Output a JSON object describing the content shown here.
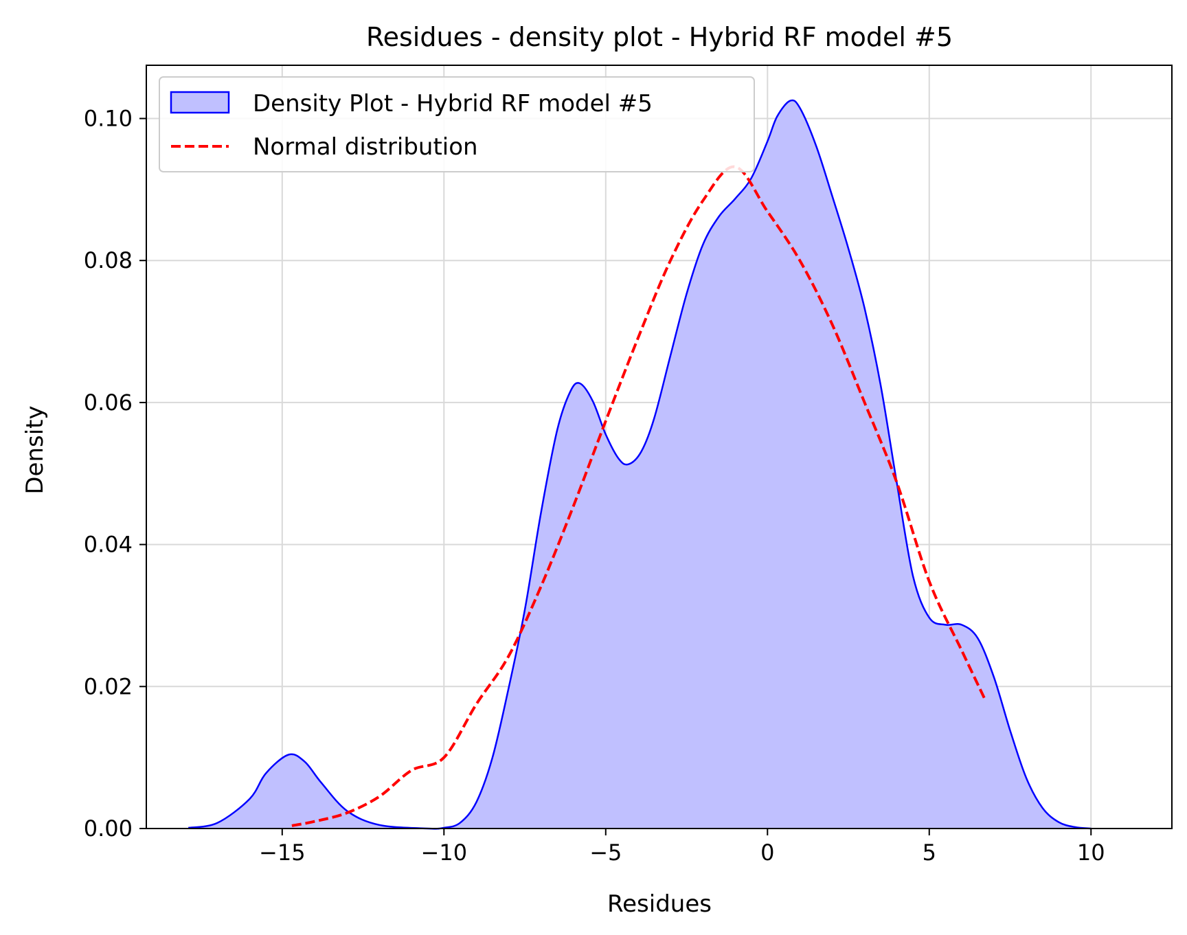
{
  "chart_data": {
    "type": "area",
    "title": "Residues - density plot - Hybrid RF model #5",
    "xlabel": "Residues",
    "ylabel": "Density",
    "xlim": [
      -19.2,
      12.5
    ],
    "ylim": [
      0,
      0.1075
    ],
    "grid": true,
    "legend_position": "upper-left",
    "x_ticks": [
      -15,
      -10,
      -5,
      0,
      5,
      10
    ],
    "x_tick_labels": [
      "−15",
      "−10",
      "−5",
      "0",
      "5",
      "10"
    ],
    "y_ticks": [
      0.0,
      0.02,
      0.04,
      0.06,
      0.08,
      0.1
    ],
    "y_tick_labels": [
      "0.00",
      "0.02",
      "0.04",
      "0.06",
      "0.08",
      "0.10"
    ],
    "series": [
      {
        "name": "Density Plot - Hybrid RF model #5",
        "kind": "filled-area",
        "color": "#0000ff",
        "fill": "#c0c0ff",
        "points": [
          [
            -17.9,
            0.0001
          ],
          [
            -17.0,
            0.0008
          ],
          [
            -16.0,
            0.0042
          ],
          [
            -15.5,
            0.0078
          ],
          [
            -14.8,
            0.0104
          ],
          [
            -14.3,
            0.0094
          ],
          [
            -13.8,
            0.0065
          ],
          [
            -13.0,
            0.0025
          ],
          [
            -12.0,
            0.0005
          ],
          [
            -10.5,
            0.0
          ],
          [
            -10.0,
            0.0001
          ],
          [
            -9.5,
            0.0008
          ],
          [
            -9.0,
            0.0037
          ],
          [
            -8.5,
            0.01
          ],
          [
            -8.0,
            0.0198
          ],
          [
            -7.5,
            0.0308
          ],
          [
            -7.0,
            0.0445
          ],
          [
            -6.5,
            0.0561
          ],
          [
            -6.1,
            0.0615
          ],
          [
            -5.8,
            0.0627
          ],
          [
            -5.4,
            0.0602
          ],
          [
            -5.0,
            0.0555
          ],
          [
            -4.6,
            0.0521
          ],
          [
            -4.3,
            0.0513
          ],
          [
            -3.9,
            0.0531
          ],
          [
            -3.5,
            0.0578
          ],
          [
            -3.0,
            0.0666
          ],
          [
            -2.5,
            0.0753
          ],
          [
            -2.0,
            0.0822
          ],
          [
            -1.5,
            0.0862
          ],
          [
            -1.0,
            0.0887
          ],
          [
            -0.5,
            0.0916
          ],
          [
            0.0,
            0.0968
          ],
          [
            0.3,
            0.1003
          ],
          [
            0.7,
            0.1025
          ],
          [
            1.0,
            0.1015
          ],
          [
            1.5,
            0.0962
          ],
          [
            2.0,
            0.0891
          ],
          [
            2.5,
            0.0817
          ],
          [
            3.0,
            0.0733
          ],
          [
            3.5,
            0.0624
          ],
          [
            4.0,
            0.0486
          ],
          [
            4.5,
            0.0355
          ],
          [
            5.0,
            0.0297
          ],
          [
            5.5,
            0.0287
          ],
          [
            6.0,
            0.0287
          ],
          [
            6.5,
            0.0268
          ],
          [
            7.0,
            0.0213
          ],
          [
            7.5,
            0.0138
          ],
          [
            8.0,
            0.0071
          ],
          [
            8.5,
            0.0029
          ],
          [
            9.0,
            0.0009
          ],
          [
            9.5,
            0.0002
          ],
          [
            10.0,
            0.0
          ]
        ]
      },
      {
        "name": "Normal distribution",
        "kind": "dashed-line",
        "color": "#ff0000",
        "points": [
          [
            -14.7,
            0.0004
          ],
          [
            -14.0,
            0.001
          ],
          [
            -13.0,
            0.0022
          ],
          [
            -12.0,
            0.0045
          ],
          [
            -11.0,
            0.0082
          ],
          [
            -10.0,
            0.01
          ],
          [
            -9.0,
            0.0175
          ],
          [
            -8.0,
            0.0243
          ],
          [
            -7.0,
            0.0341
          ],
          [
            -6.0,
            0.0454
          ],
          [
            -5.0,
            0.0574
          ],
          [
            -4.0,
            0.0691
          ],
          [
            -3.0,
            0.08
          ],
          [
            -2.0,
            0.0884
          ],
          [
            -1.0,
            0.0932
          ],
          [
            0.0,
            0.0869
          ],
          [
            1.0,
            0.08
          ],
          [
            2.0,
            0.071
          ],
          [
            3.0,
            0.06
          ],
          [
            4.0,
            0.0487
          ],
          [
            5.0,
            0.0348
          ],
          [
            6.0,
            0.0251
          ],
          [
            6.7,
            0.0184
          ]
        ]
      }
    ]
  }
}
